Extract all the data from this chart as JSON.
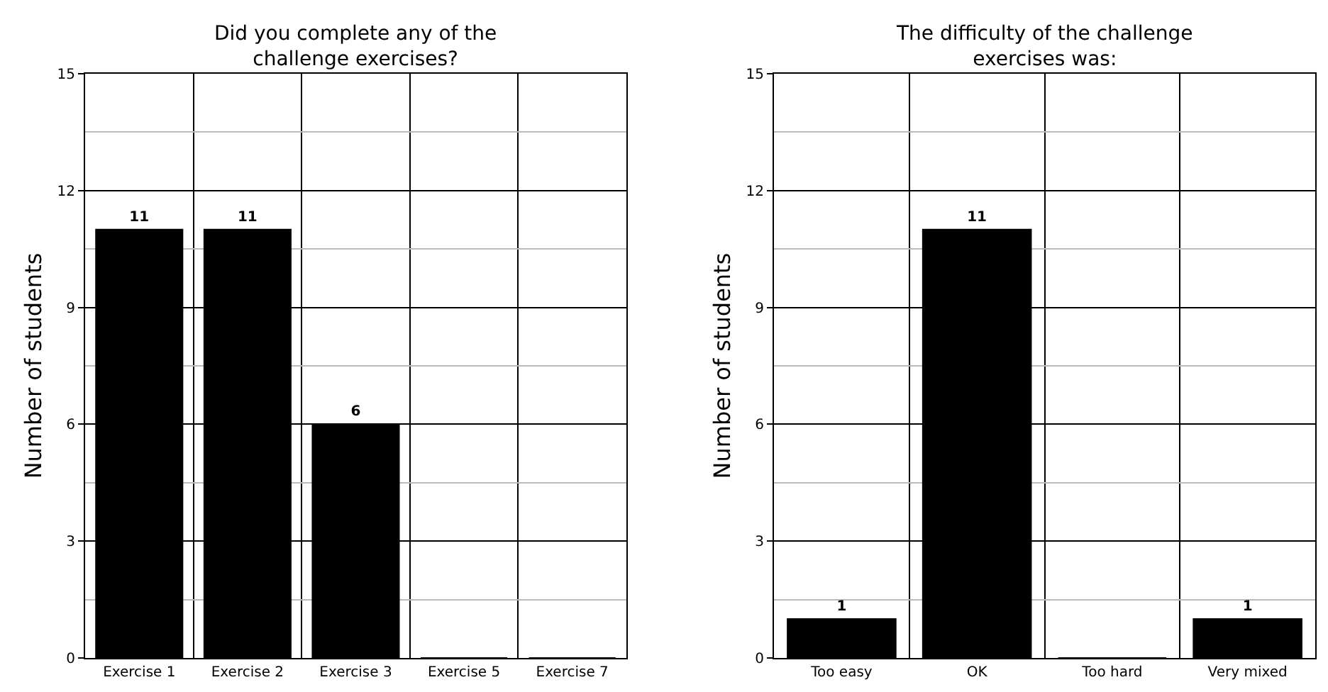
{
  "chart_data": [
    {
      "type": "bar",
      "title": "Did you complete any of the challenge exercises?",
      "ylabel": "Number of students",
      "categories": [
        "Exercise 1",
        "Exercise 2",
        "Exercise 3",
        "Exercise 5",
        "Exercise 7"
      ],
      "values": [
        11,
        11,
        6,
        0,
        0
      ],
      "value_labels": [
        "11",
        "11",
        "6",
        null,
        null
      ],
      "color": "#000000",
      "ylim": [
        0,
        15
      ],
      "yticks": [
        0,
        3,
        6,
        9,
        12,
        15
      ],
      "grid": true
    },
    {
      "type": "bar",
      "title": "The difficulty of the challenge exercises was:",
      "ylabel": "Number of students",
      "categories": [
        "Too easy",
        "OK",
        "Too hard",
        "Very mixed"
      ],
      "values": [
        1,
        11,
        0,
        1
      ],
      "value_labels": [
        "1",
        "11",
        null,
        "1"
      ],
      "color": "#000000",
      "ylim": [
        0,
        15
      ],
      "yticks": [
        0,
        3,
        6,
        9,
        12,
        15
      ],
      "grid": true
    }
  ]
}
